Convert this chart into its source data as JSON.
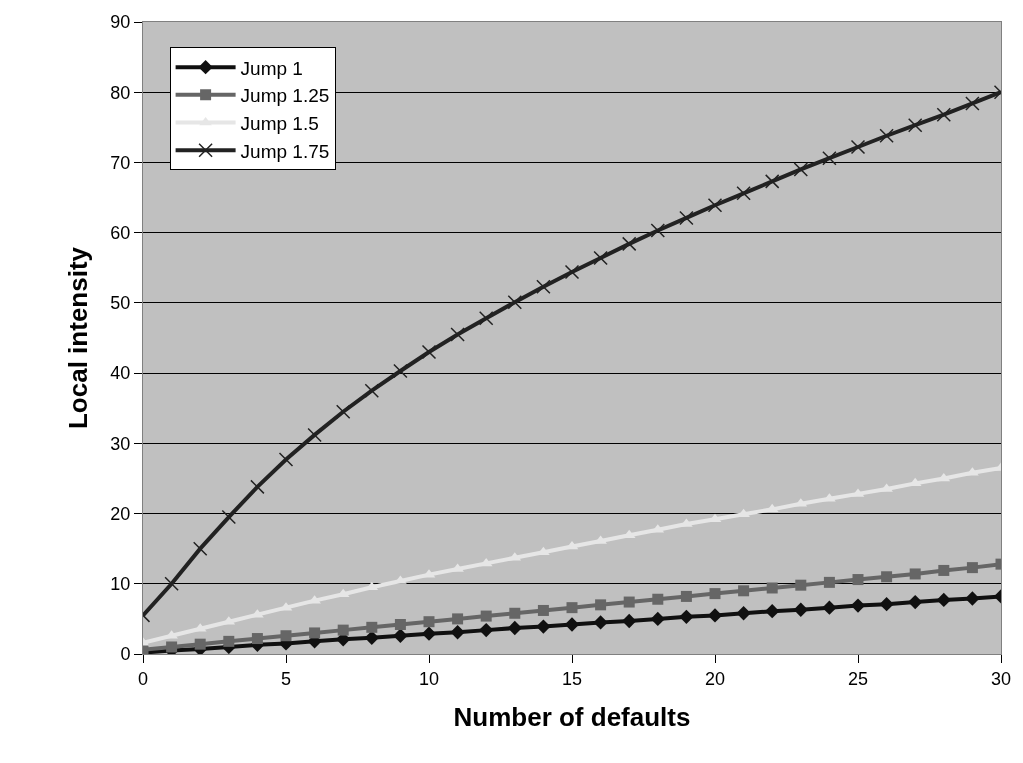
{
  "chart_data": {
    "type": "line",
    "xlabel": "Number of defaults",
    "ylabel": "Local intensity",
    "x": [
      0,
      1,
      2,
      3,
      4,
      5,
      6,
      7,
      8,
      9,
      10,
      11,
      12,
      13,
      14,
      15,
      16,
      17,
      18,
      19,
      20,
      21,
      22,
      23,
      24,
      25,
      26,
      27,
      28,
      29,
      30
    ],
    "xlim": [
      0,
      30
    ],
    "xticks": [
      0,
      5,
      10,
      15,
      20,
      25,
      30
    ],
    "ylim": [
      0,
      90
    ],
    "yticks": [
      0,
      10,
      20,
      30,
      40,
      50,
      60,
      70,
      80,
      90
    ],
    "grid": "y",
    "legend": "top left",
    "line_style": "solid",
    "series": [
      {
        "name": "Jump 1",
        "color": "#101010",
        "marker": "diamond",
        "values": [
          0.2,
          0.5,
          0.7,
          1.0,
          1.3,
          1.5,
          1.8,
          2.1,
          2.3,
          2.6,
          2.9,
          3.1,
          3.4,
          3.7,
          3.9,
          4.2,
          4.5,
          4.7,
          5.0,
          5.3,
          5.5,
          5.8,
          6.1,
          6.3,
          6.6,
          6.9,
          7.1,
          7.4,
          7.7,
          7.9,
          8.2
        ]
      },
      {
        "name": "Jump 1.25",
        "color": "#666666",
        "marker": "square",
        "values": [
          0.6,
          1.0,
          1.4,
          1.8,
          2.2,
          2.6,
          3.0,
          3.4,
          3.8,
          4.2,
          4.6,
          5.0,
          5.4,
          5.8,
          6.2,
          6.6,
          7.0,
          7.4,
          7.8,
          8.2,
          8.6,
          9.0,
          9.4,
          9.8,
          10.2,
          10.6,
          11.0,
          11.4,
          11.9,
          12.3,
          12.8
        ]
      },
      {
        "name": "Jump 1.5",
        "color": "#e6e6e6",
        "marker": "triangle",
        "values": [
          1.6,
          2.6,
          3.6,
          4.6,
          5.6,
          6.6,
          7.6,
          8.5,
          9.5,
          10.4,
          11.3,
          12.1,
          12.9,
          13.7,
          14.5,
          15.3,
          16.1,
          16.9,
          17.7,
          18.5,
          19.2,
          19.9,
          20.6,
          21.4,
          22.1,
          22.8,
          23.5,
          24.3,
          25.0,
          25.8,
          26.5
        ]
      },
      {
        "name": "Jump 1.75",
        "color": "#222222",
        "marker": "cross",
        "values": [
          5.5,
          10.0,
          15.0,
          19.5,
          23.8,
          27.7,
          31.2,
          34.5,
          37.5,
          40.3,
          43.0,
          45.5,
          47.8,
          50.1,
          52.3,
          54.4,
          56.4,
          58.4,
          60.3,
          62.1,
          63.9,
          65.6,
          67.3,
          69.0,
          70.6,
          72.2,
          73.8,
          75.3,
          76.8,
          78.4,
          80.0
        ]
      }
    ]
  }
}
